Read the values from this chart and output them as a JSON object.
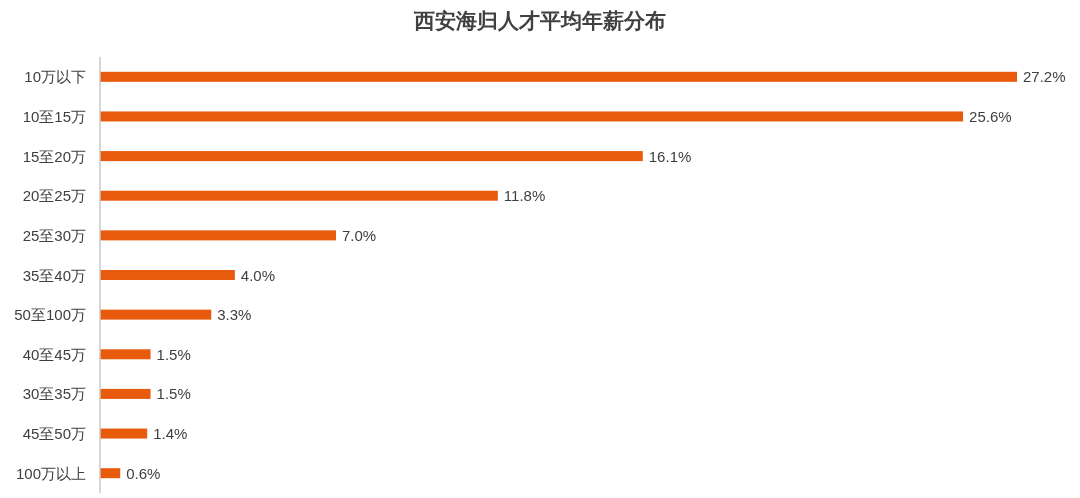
{
  "chart_data": {
    "type": "bar",
    "orientation": "horizontal",
    "title": "西安海归人才平均年薪分布",
    "categories": [
      "10万以下",
      "10至15万",
      "15至20万",
      "20至25万",
      "25至30万",
      "35至40万",
      "50至100万",
      "40至45万",
      "30至35万",
      "45至50万",
      "100万以上"
    ],
    "values": [
      27.2,
      25.6,
      16.1,
      11.8,
      7.0,
      4.0,
      3.3,
      1.5,
      1.5,
      1.4,
      0.6
    ],
    "value_labels": [
      "27.2%",
      "25.6%",
      "16.1%",
      "11.8%",
      "7.0%",
      "4.0%",
      "3.3%",
      "1.5%",
      "1.5%",
      "1.4%",
      "0.6%"
    ],
    "color": "#e85a0c"
  }
}
